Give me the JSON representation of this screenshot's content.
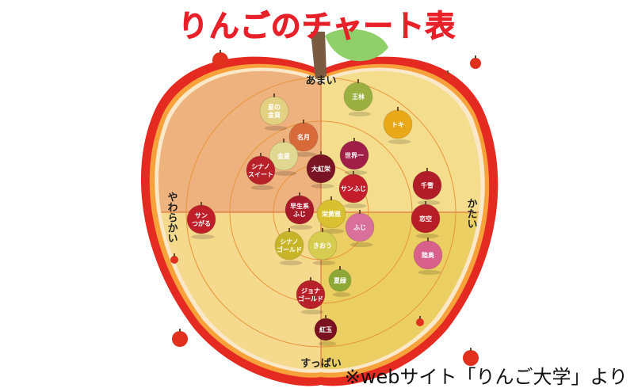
{
  "title": "りんごのチャート表",
  "source": "※webサイト「りんご大学」より",
  "axes": {
    "top": "あまい",
    "bottom": "すっぱい",
    "left": "やわらかい",
    "right": "かたい"
  },
  "colors": {
    "rim": "#e52a22",
    "q_top_left": "#eeb27e",
    "q_top_right": "#f4de8e",
    "q_bottom_left": "#f5d98c",
    "q_bottom_right": "#ebcf62"
  },
  "apples": [
    {
      "name": "王林",
      "color": "#9bb040"
    },
    {
      "name": "トキ",
      "color": "#e9a818"
    },
    {
      "name": "星の\n金貨",
      "color": "#e3d080"
    },
    {
      "name": "名月",
      "color": "#d86a3a"
    },
    {
      "name": "金星",
      "color": "#e0d890"
    },
    {
      "name": "シナノ\nスイート",
      "color": "#b8202a"
    },
    {
      "name": "大紅栄",
      "color": "#7a1424"
    },
    {
      "name": "世界一",
      "color": "#a01e48"
    },
    {
      "name": "サンふじ",
      "color": "#c41e2c"
    },
    {
      "name": "千雪",
      "color": "#b01c28"
    },
    {
      "name": "恋空",
      "color": "#b81e28"
    },
    {
      "name": "陸奥",
      "color": "#d8608a"
    },
    {
      "name": "サン\nつがる",
      "color": "#c01e28"
    },
    {
      "name": "早生系\nふじ",
      "color": "#a81a2a"
    },
    {
      "name": "栄黄雅",
      "color": "#d8c030"
    },
    {
      "name": "ふじ",
      "color": "#d8709a"
    },
    {
      "name": "シナノ\nゴールド",
      "color": "#c8b428"
    },
    {
      "name": "きおう",
      "color": "#d6cc50"
    },
    {
      "name": "夏緑",
      "color": "#8ea838"
    },
    {
      "name": "ジョナ\nゴールド",
      "color": "#b8202a"
    },
    {
      "name": "紅玉",
      "color": "#7a1020"
    }
  ]
}
